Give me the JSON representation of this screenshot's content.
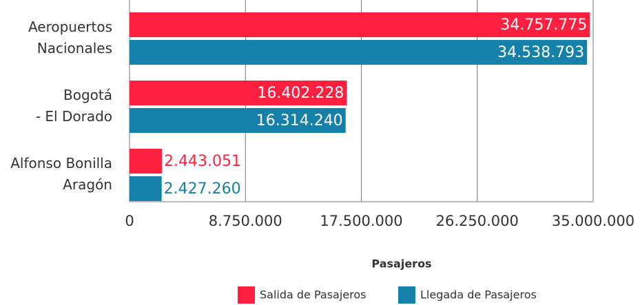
{
  "chart_data": {
    "type": "barh",
    "categories": [
      [
        "Aeropuertos",
        "Nacionales"
      ],
      [
        "Bogotá",
        "- El Dorado"
      ],
      [
        "Alfonso Bonilla",
        "Aragón"
      ]
    ],
    "series": [
      {
        "name": "Salida de Pasajeros",
        "color": "#ff1f3f",
        "values": [
          34757775,
          16402228,
          2443051
        ],
        "value_labels": [
          "34.757.775",
          "16.402.228",
          "2.443.051"
        ]
      },
      {
        "name": "Llegada de Pasajeros",
        "color": "#1580aa",
        "values": [
          34538793,
          16314240,
          2427260
        ],
        "value_labels": [
          "34.538.793",
          "16.314.240",
          "2.427.260"
        ]
      }
    ],
    "xlabel": "Pasajeros",
    "xlim": [
      0,
      35000000
    ],
    "xticks": [
      0,
      {
        "value": 8750000,
        "label": "8.750.000"
      },
      {
        "value": 17500000,
        "label": "17.500.000"
      },
      {
        "value": 26250000,
        "label": "26.250.000"
      },
      {
        "value": 35000000,
        "label": "35.000.000"
      }
    ],
    "grid": true,
    "legend": "bottom"
  }
}
